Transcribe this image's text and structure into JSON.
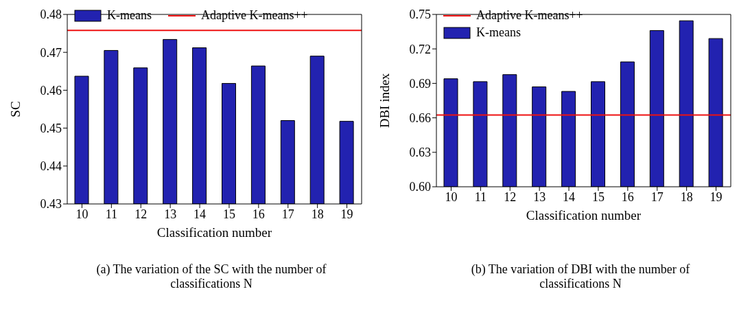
{
  "chart_data": [
    {
      "type": "bar",
      "categories": [
        "10",
        "11",
        "12",
        "13",
        "14",
        "15",
        "16",
        "17",
        "18",
        "19"
      ],
      "xlabel": "Classification number",
      "ylabel": "SC",
      "ylim": [
        0.43,
        0.48
      ],
      "yticks": [
        0.43,
        0.44,
        0.45,
        0.46,
        0.47,
        0.48
      ],
      "series": [
        {
          "name": "K-means",
          "color": "#2222b0",
          "values": [
            0.4637,
            0.4705,
            0.4659,
            0.4734,
            0.4712,
            0.4618,
            0.4664,
            0.452,
            0.469,
            0.4518
          ]
        }
      ],
      "ref_lines": [
        {
          "axis": "y",
          "value": 0.4758,
          "label": "Adaptive K-means++",
          "color": "#ee1111"
        }
      ],
      "legend": "top",
      "grid": false,
      "annotations": [
        "(a) The variation of the SC with the number of classifications N"
      ]
    },
    {
      "type": "bar",
      "categories": [
        "10",
        "11",
        "12",
        "13",
        "14",
        "15",
        "16",
        "17",
        "18",
        "19"
      ],
      "xlabel": "Classification number",
      "ylabel": "DBI index",
      "ylim": [
        0.6,
        0.75
      ],
      "yticks": [
        {
          "value": 0.6,
          "label": "0.60"
        },
        0.63,
        0.66,
        0.69,
        0.72,
        0.75
      ],
      "series": [
        {
          "name": "K-means",
          "color": "#2222b0",
          "values": [
            0.694,
            0.6915,
            0.6976,
            0.687,
            0.683,
            0.6915,
            0.7087,
            0.736,
            0.7445,
            0.729
          ]
        }
      ],
      "ref_lines": [
        {
          "axis": "y",
          "value": 0.6625,
          "label": "Adaptive K-means++",
          "color": "#ee1111"
        }
      ],
      "legend": "top left",
      "grid": false,
      "annotations": [
        "(b) The variation of DBI with the number of classifications N"
      ]
    }
  ]
}
